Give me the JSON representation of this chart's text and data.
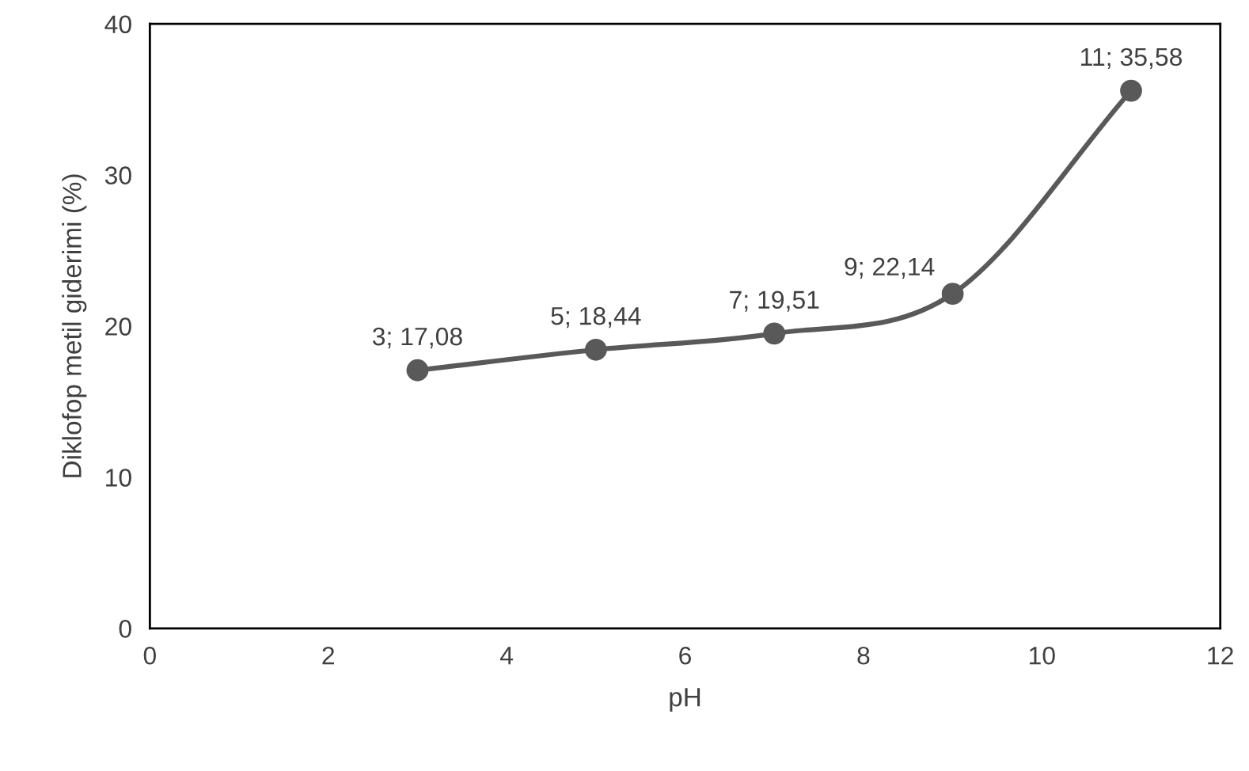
{
  "chart_data": {
    "type": "line",
    "xlabel": "pH",
    "ylabel": "Diklofop metil giderimi (%)",
    "x": [
      3,
      5,
      7,
      9,
      11
    ],
    "series": [
      {
        "color": "#595959",
        "values": [
          17.08,
          18.44,
          19.51,
          22.14,
          35.58
        ],
        "value_labels": [
          "3; 17,08",
          "5; 18,44",
          "7; 19,51",
          "9; 22,14",
          "11; 35,58"
        ]
      }
    ],
    "xlim": [
      0,
      12
    ],
    "xticks": [
      0,
      2,
      4,
      6,
      8,
      10,
      12
    ],
    "ylim": [
      0,
      40
    ],
    "yticks": [
      0,
      10,
      20,
      30,
      40
    ],
    "grid": false,
    "legend": false,
    "marker": "circle",
    "line_style": "solid"
  }
}
